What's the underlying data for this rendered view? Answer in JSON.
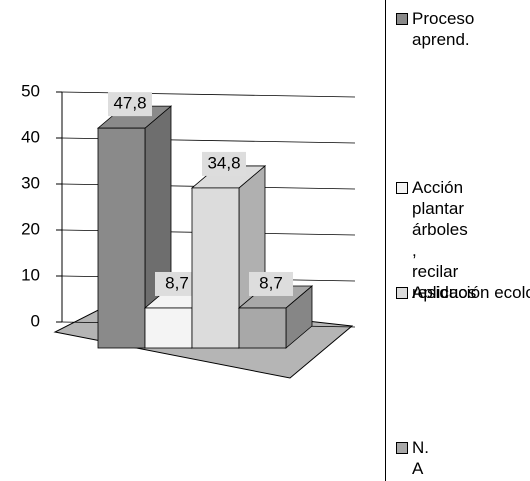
{
  "chart_data": {
    "type": "bar",
    "series": [
      {
        "name": "Proceso aprend.",
        "color": "#8a8a8a",
        "values": [
          47.8
        ],
        "value_labels": [
          "47,8"
        ]
      },
      {
        "name": "Acción plantar árboles , recilar residuos",
        "color": "#f4f4f4",
        "values": [
          8.7
        ],
        "value_labels": [
          "8,7"
        ]
      },
      {
        "name": "Aplicación ecología",
        "color": "#dcdcdc",
        "values": [
          34.8
        ],
        "value_labels": [
          "34,8"
        ]
      },
      {
        "name": "N. A",
        "color": "#a8a8a8",
        "values": [
          8.7
        ],
        "value_labels": [
          "8,7"
        ]
      }
    ],
    "ylim": [
      0,
      50
    ],
    "yticks": [
      0,
      10,
      20,
      30,
      40,
      50
    ],
    "grid": true
  }
}
